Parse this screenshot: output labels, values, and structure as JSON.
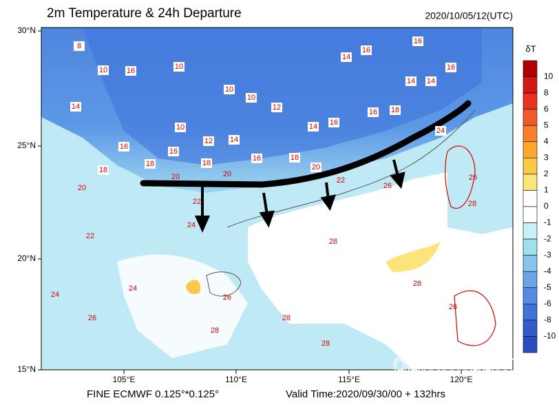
{
  "header": {
    "title": "2m Temperature & 24h Departure",
    "date": "2020/10/05/12(UTC)"
  },
  "axes": {
    "lat_labels": [
      "30°N",
      "25°N",
      "20°N",
      "15°N"
    ],
    "lon_labels": [
      "105°E",
      "110°E",
      "115°E",
      "120°E"
    ]
  },
  "colorbar": {
    "title": "δT",
    "labels": [
      10,
      8,
      6,
      5,
      4,
      3,
      2,
      1,
      0,
      -1,
      -2,
      -3,
      -4,
      -5,
      -6,
      -8,
      -10
    ],
    "colors": [
      "#b00000",
      "#d01818",
      "#e8321e",
      "#f05a28",
      "#f6802e",
      "#fca72e",
      "#fcc848",
      "#fde47a",
      "#ffffff",
      "#ffffff",
      "#c8f0f6",
      "#a2e0ee",
      "#86c6ee",
      "#6aa6e6",
      "#538ce0",
      "#4072d8",
      "#2f5ccc",
      "#2a4cc0"
    ]
  },
  "contour_labels": [
    10,
    16,
    10,
    8,
    10,
    10,
    12,
    10,
    12,
    14,
    16,
    16,
    18,
    18,
    20,
    20,
    18,
    20,
    16,
    14,
    16,
    16,
    14,
    14,
    14,
    16,
    16,
    18,
    24,
    22,
    26,
    22,
    24,
    28,
    28,
    28,
    26,
    26,
    24,
    22,
    20,
    18,
    14,
    16,
    28,
    26,
    24,
    28,
    28,
    26
  ],
  "footer": {
    "source": "FINE ECMWF 0.125°*0.125°",
    "valid": "Valid Time:2020/09/30/00 + 132hrs"
  },
  "watermark": "gdmm.com"
}
